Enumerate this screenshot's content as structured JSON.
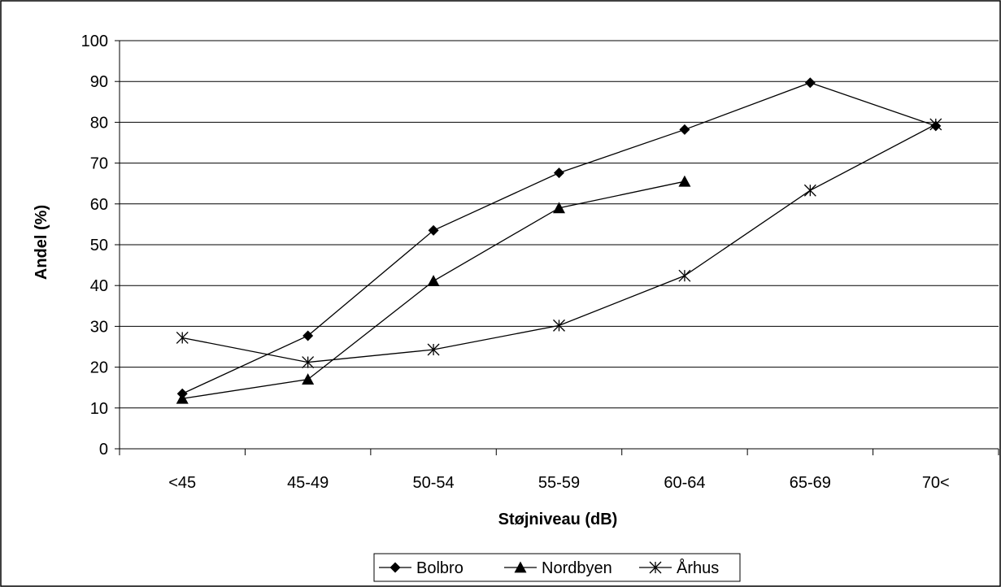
{
  "chart_data": {
    "type": "line",
    "title": "",
    "xlabel": "Støjniveau (dB)",
    "ylabel": "Andel (%)",
    "categories": [
      "<45",
      "45-49",
      "50-54",
      "55-59",
      "60-64",
      "65-69",
      "70<"
    ],
    "ylim": [
      0,
      100
    ],
    "yticks": [
      0,
      10,
      20,
      30,
      40,
      50,
      60,
      70,
      80,
      90,
      100
    ],
    "grid": true,
    "legend_position": "bottom",
    "series": [
      {
        "name": "Bolbro",
        "marker": "diamond",
        "color": "#000000",
        "values": [
          13.5,
          27.7,
          53.5,
          67.6,
          78.2,
          89.7,
          79.1
        ]
      },
      {
        "name": "Nordbyen",
        "marker": "triangle",
        "color": "#000000",
        "values": [
          12.3,
          17.0,
          41.1,
          59.0,
          65.5,
          null,
          null
        ]
      },
      {
        "name": "Århus",
        "marker": "asterisk",
        "color": "#000000",
        "values": [
          27.2,
          21.2,
          24.3,
          30.2,
          42.4,
          63.3,
          79.5
        ]
      }
    ]
  }
}
